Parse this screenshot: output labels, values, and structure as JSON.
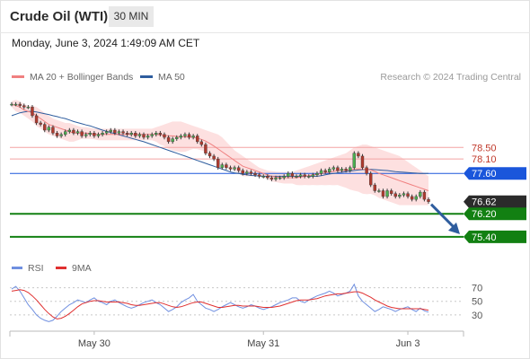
{
  "header": {
    "instrument": "Crude Oil (WTI)",
    "timeframe": "30 MIN",
    "datetime": "Monday, June 3, 2024 1:49:09 AM CET"
  },
  "legend": {
    "ma20_label": "MA 20 + Bollinger Bands",
    "ma50_label": "MA 50",
    "copyright": "Research © 2024 Trading Central"
  },
  "rsi_legend": {
    "rsi_label": "RSI",
    "ma_label": "9MA"
  },
  "colors": {
    "ma20": "#f08080",
    "ma50": "#2e5d9e",
    "bollinger_fill": "#fde0e0",
    "level_red": "#f4a3a3",
    "level_blue": "#1a56db",
    "level_green": "#128012",
    "current_price": "#2b2b2b",
    "arrow": "#2e5d9e",
    "rsi_line": "#6f8fe0",
    "rsi_ma": "#e03030"
  },
  "chart_data": [
    {
      "type": "candlestick",
      "title": "Crude Oil (WTI)",
      "x_ticks": [
        "May 30",
        "May 31",
        "Jun 3"
      ],
      "y_range": [
        74.9,
        80.5
      ],
      "price_levels": [
        {
          "label": "78.50",
          "value": 78.5,
          "kind": "resistance"
        },
        {
          "label": "78.10",
          "value": 78.1,
          "kind": "resistance"
        },
        {
          "label": "77.60",
          "value": 77.6,
          "kind": "pivot"
        },
        {
          "label": "76.62",
          "value": 76.62,
          "kind": "current"
        },
        {
          "label": "76.20",
          "value": 76.2,
          "kind": "support"
        },
        {
          "label": "75.40",
          "value": 75.4,
          "kind": "support"
        }
      ],
      "close": [
        80.0,
        80.0,
        79.95,
        79.9,
        79.9,
        79.6,
        79.35,
        79.3,
        79.1,
        79.2,
        79.0,
        78.9,
        78.95,
        79.05,
        79.1,
        79.0,
        79.05,
        78.9,
        78.95,
        79.0,
        78.9,
        78.95,
        79.0,
        79.05,
        79.1,
        79.0,
        79.05,
        79.0,
        78.95,
        79.0,
        78.9,
        78.95,
        78.85,
        78.9,
        78.95,
        79.0,
        78.95,
        78.85,
        78.7,
        78.8,
        78.85,
        78.9,
        78.95,
        78.85,
        78.9,
        78.7,
        78.6,
        78.3,
        78.2,
        78.1,
        77.8,
        77.9,
        77.8,
        77.75,
        77.8,
        77.7,
        77.6,
        77.65,
        77.6,
        77.55,
        77.5,
        77.5,
        77.45,
        77.4,
        77.45,
        77.45,
        77.5,
        77.6,
        77.5,
        77.5,
        77.55,
        77.5,
        77.5,
        77.55,
        77.6,
        77.7,
        77.65,
        77.75,
        77.8,
        77.7,
        77.75,
        77.7,
        77.8,
        78.3,
        78.2,
        77.8,
        77.6,
        77.2,
        77.0,
        77.0,
        76.8,
        77.0,
        76.9,
        76.8,
        76.85,
        76.9,
        76.8,
        76.7,
        76.8,
        76.95,
        76.7,
        76.62
      ],
      "ma20": [
        80.0,
        79.95,
        79.9,
        79.8,
        79.75,
        79.7,
        79.6,
        79.5,
        79.4,
        79.3,
        79.25,
        79.2,
        79.15,
        79.1,
        79.05,
        79.0,
        79.0,
        79.0,
        79.0,
        78.98,
        78.96,
        78.95,
        78.95,
        78.95,
        78.95,
        78.95,
        78.95,
        78.95,
        78.95,
        78.95,
        78.95,
        78.95,
        78.95,
        78.95,
        78.95,
        78.95,
        78.93,
        78.92,
        78.9,
        78.9,
        78.88,
        78.87,
        78.87,
        78.86,
        78.85,
        78.82,
        78.78,
        78.72,
        78.64,
        78.55,
        78.45,
        78.35,
        78.25,
        78.15,
        78.05,
        77.95,
        77.85,
        77.8,
        77.75,
        77.7,
        77.65,
        77.6,
        77.55,
        77.5,
        77.48,
        77.46,
        77.45,
        77.45,
        77.45,
        77.45,
        77.47,
        77.5,
        77.52,
        77.55,
        77.57,
        77.6,
        77.62,
        77.65,
        77.67,
        77.7,
        77.7,
        77.7,
        77.72,
        77.75,
        77.76,
        77.75,
        77.74,
        77.72,
        77.67,
        77.6,
        77.55,
        77.5,
        77.45,
        77.4,
        77.35,
        77.3,
        77.25,
        77.2,
        77.15,
        77.1,
        77.05,
        77.0
      ],
      "ma50": [
        79.6,
        79.65,
        79.7,
        79.73,
        79.75,
        79.75,
        79.73,
        79.7,
        79.67,
        79.64,
        79.6,
        79.57,
        79.53,
        79.5,
        79.45,
        79.4,
        79.36,
        79.32,
        79.28,
        79.25,
        79.2,
        79.15,
        79.1,
        79.06,
        79.02,
        78.98,
        78.94,
        78.9,
        78.86,
        78.82,
        78.78,
        78.74,
        78.7,
        78.65,
        78.6,
        78.55,
        78.5,
        78.45,
        78.4,
        78.35,
        78.3,
        78.25,
        78.2,
        78.15,
        78.1,
        78.05,
        78.0,
        77.95,
        77.9,
        77.85,
        77.8,
        77.75,
        77.7,
        77.65,
        77.62,
        77.6,
        77.57,
        77.55,
        77.53,
        77.52,
        77.51,
        77.5,
        77.5,
        77.5,
        77.5,
        77.5,
        77.5,
        77.5,
        77.5,
        77.5,
        77.5,
        77.5,
        77.5,
        77.5,
        77.5,
        77.52,
        77.55,
        77.58,
        77.6,
        77.62,
        77.64,
        77.66,
        77.68,
        77.7,
        77.72,
        77.73,
        77.74,
        77.74,
        77.73,
        77.72,
        77.71,
        77.7,
        77.68,
        77.66,
        77.65,
        77.64,
        77.63,
        77.62,
        77.61,
        77.6,
        77.6,
        77.6
      ],
      "bb_upper": [
        80.1,
        80.15,
        80.1,
        80.0,
        79.95,
        79.95,
        79.9,
        79.8,
        79.7,
        79.6,
        79.5,
        79.45,
        79.4,
        79.35,
        79.35,
        79.3,
        79.25,
        79.2,
        79.2,
        79.18,
        79.15,
        79.15,
        79.15,
        79.15,
        79.15,
        79.15,
        79.15,
        79.15,
        79.15,
        79.15,
        79.15,
        79.15,
        79.15,
        79.15,
        79.15,
        79.2,
        79.25,
        79.3,
        79.35,
        79.4,
        79.4,
        79.4,
        79.35,
        79.3,
        79.25,
        79.2,
        79.15,
        79.1,
        79.05,
        79.0,
        78.95,
        78.85,
        78.7,
        78.55,
        78.4,
        78.3,
        78.2,
        78.1,
        78.0,
        77.9,
        77.8,
        77.75,
        77.7,
        77.68,
        77.66,
        77.65,
        77.65,
        77.65,
        77.65,
        77.7,
        77.75,
        77.8,
        77.85,
        77.9,
        77.95,
        78.0,
        78.05,
        78.1,
        78.15,
        78.2,
        78.25,
        78.3,
        78.4,
        78.5,
        78.55,
        78.6,
        78.6,
        78.55,
        78.5,
        78.45,
        78.4,
        78.35,
        78.3,
        78.25,
        78.2,
        78.1,
        78.0,
        77.9,
        77.8,
        77.7,
        77.6,
        77.5
      ],
      "bb_lower": [
        79.9,
        79.75,
        79.7,
        79.6,
        79.5,
        79.4,
        79.25,
        79.15,
        79.05,
        78.95,
        78.9,
        78.85,
        78.8,
        78.75,
        78.7,
        78.7,
        78.75,
        78.8,
        78.8,
        78.8,
        78.78,
        78.75,
        78.75,
        78.75,
        78.75,
        78.75,
        78.75,
        78.75,
        78.75,
        78.75,
        78.75,
        78.75,
        78.75,
        78.75,
        78.75,
        78.7,
        78.6,
        78.55,
        78.45,
        78.4,
        78.36,
        78.34,
        78.35,
        78.4,
        78.45,
        78.44,
        78.4,
        78.34,
        78.2,
        78.1,
        77.95,
        77.85,
        77.8,
        77.75,
        77.7,
        77.6,
        77.5,
        77.5,
        77.5,
        77.5,
        77.5,
        77.45,
        77.4,
        77.32,
        77.3,
        77.27,
        77.25,
        77.25,
        77.25,
        77.2,
        77.19,
        77.2,
        77.19,
        77.2,
        77.19,
        77.2,
        77.19,
        77.2,
        77.19,
        77.2,
        77.15,
        77.1,
        77.04,
        77.0,
        76.97,
        76.9,
        76.88,
        76.89,
        76.84,
        76.75,
        76.7,
        76.65,
        76.6,
        76.55,
        76.5,
        76.5,
        76.5,
        76.5,
        76.5,
        76.5,
        76.5,
        76.5
      ],
      "forecast_arrow": {
        "from": 76.62,
        "to": 75.4
      }
    },
    {
      "type": "line",
      "title": "RSI",
      "y_ticks": [
        70,
        50,
        30
      ],
      "y_range": [
        10,
        80
      ],
      "x_ticks": [
        "May 30",
        "May 31",
        "Jun 3"
      ],
      "series": [
        {
          "name": "RSI",
          "values": [
            68,
            72,
            65,
            55,
            45,
            38,
            30,
            25,
            22,
            20,
            22,
            28,
            35,
            40,
            45,
            48,
            52,
            50,
            48,
            52,
            55,
            50,
            48,
            45,
            50,
            52,
            48,
            45,
            42,
            40,
            42,
            45,
            48,
            50,
            52,
            48,
            45,
            40,
            35,
            38,
            42,
            48,
            52,
            55,
            60,
            50,
            45,
            40,
            38,
            35,
            38,
            42,
            45,
            48,
            45,
            42,
            40,
            42,
            45,
            43,
            40,
            38,
            40,
            42,
            45,
            48,
            50,
            52,
            55,
            55,
            50,
            48,
            52,
            55,
            58,
            60,
            62,
            65,
            62,
            58,
            60,
            62,
            65,
            75,
            58,
            50,
            45,
            40,
            35,
            38,
            42,
            40,
            38,
            35,
            38,
            40,
            42,
            38,
            35,
            40,
            36,
            34
          ]
        },
        {
          "name": "9MA",
          "values": [
            65,
            66,
            67,
            66,
            63,
            58,
            52,
            45,
            38,
            32,
            27,
            24,
            25,
            28,
            32,
            37,
            42,
            46,
            48,
            50,
            51,
            51,
            50,
            49,
            49,
            49,
            49,
            48,
            47,
            45,
            44,
            44,
            45,
            46,
            47,
            48,
            48,
            46,
            44,
            42,
            41,
            42,
            44,
            46,
            48,
            49,
            49,
            47,
            45,
            43,
            41,
            41,
            42,
            43,
            44,
            44,
            43,
            43,
            43,
            43,
            42,
            41,
            41,
            41,
            42,
            43,
            45,
            47,
            49,
            51,
            52,
            52,
            52,
            53,
            54,
            56,
            58,
            59,
            60,
            61,
            61,
            62,
            63,
            64,
            64,
            62,
            59,
            56,
            52,
            49,
            46,
            43,
            41,
            40,
            39,
            39,
            39,
            39,
            39,
            39,
            38,
            37
          ]
        }
      ]
    }
  ]
}
